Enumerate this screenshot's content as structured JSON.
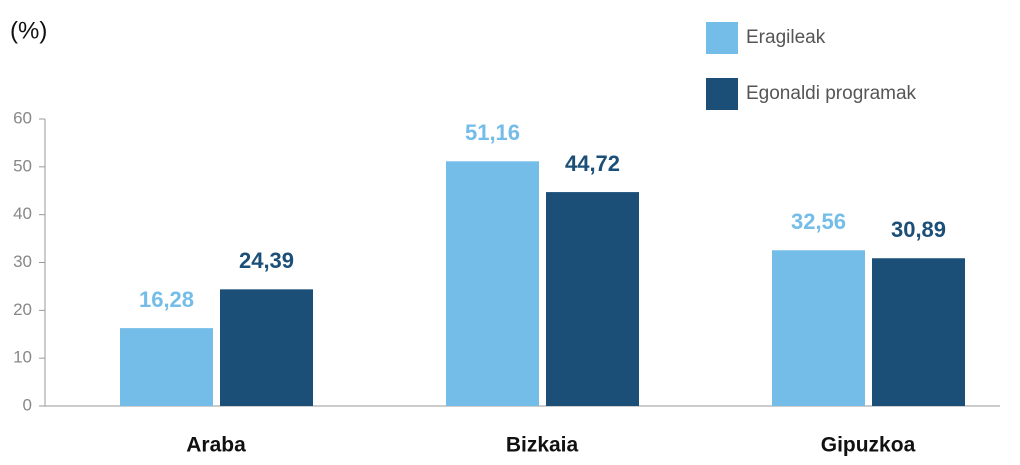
{
  "chart_data": {
    "type": "bar",
    "ylabel": "(%)",
    "categories": [
      "Araba",
      "Bizkaia",
      "Gipuzkoa"
    ],
    "series": [
      {
        "name": "Eragileak",
        "color": "#74bde8",
        "values": [
          16.28,
          51.16,
          32.56
        ],
        "value_labels": [
          "16,28",
          "51,16",
          "32,56"
        ]
      },
      {
        "name": "Egonaldi programak",
        "color": "#1b4f78",
        "values": [
          24.39,
          44.72,
          30.89
        ],
        "value_labels": [
          "24,39",
          "44,72",
          "30,89"
        ]
      }
    ],
    "ylim": [
      0,
      60
    ],
    "yticks": [
      0,
      10,
      20,
      30,
      40,
      50,
      60
    ],
    "grid": false,
    "legend": "top-right"
  }
}
